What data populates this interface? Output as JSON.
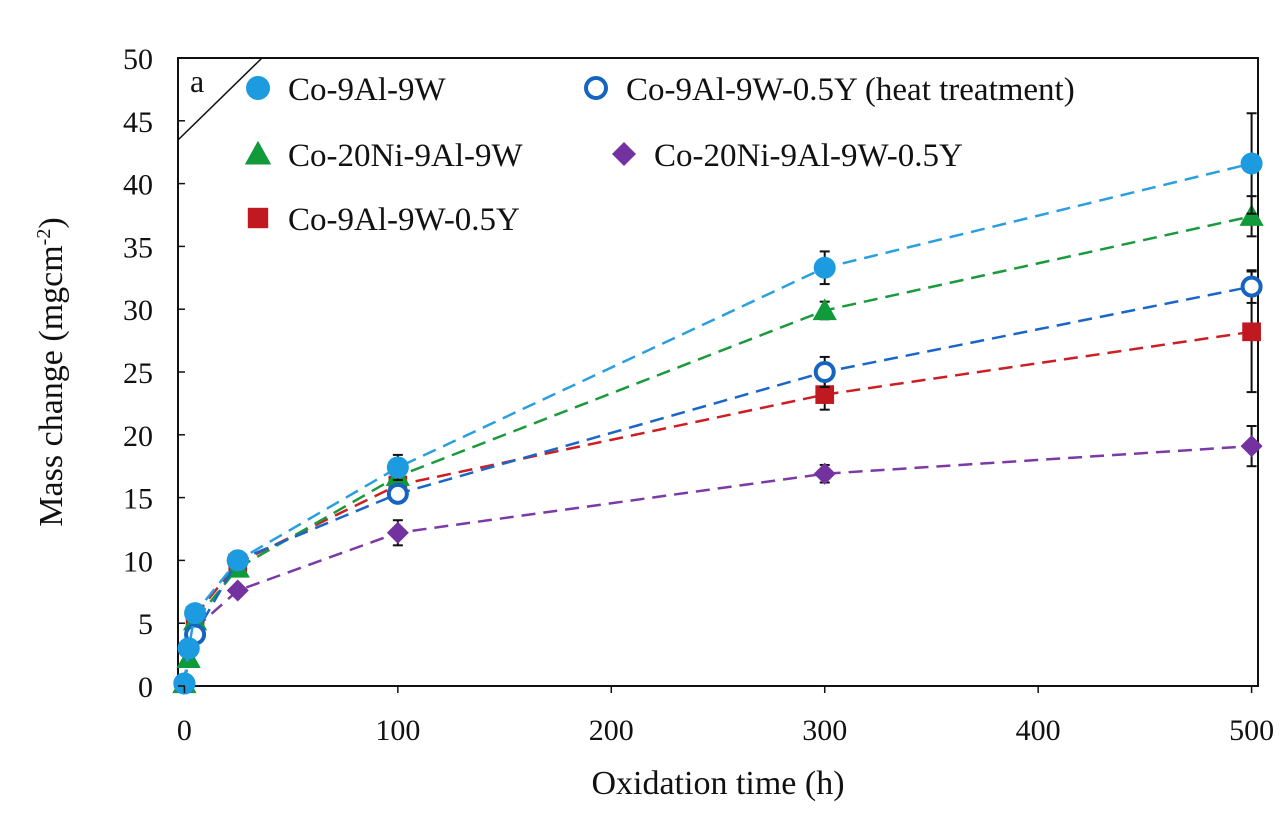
{
  "chart_data": {
    "type": "line",
    "panel_label": "a",
    "xlabel": "Oxidation time (h)",
    "ylabel": "Mass change (mgcm",
    "ylabel_sup": "-2",
    "ylabel_close": ")",
    "xlim": [
      -3,
      503
    ],
    "ylim": [
      0,
      50
    ],
    "xticks": [
      0,
      100,
      200,
      300,
      400,
      500
    ],
    "yticks": [
      0,
      5,
      10,
      15,
      20,
      25,
      30,
      35,
      40,
      45,
      50
    ],
    "grid": false,
    "legend_position": "top-left inside plot, 3 rows x 2 columns",
    "series": [
      {
        "name": "Co-9Al-9W",
        "marker": "circle",
        "color": "#1c9be0",
        "line_color": "#2a9fe0",
        "x": [
          0,
          2,
          5,
          25,
          100,
          300,
          500
        ],
        "y": [
          0.2,
          3.0,
          5.8,
          10.0,
          17.4,
          33.3,
          41.6
        ],
        "err": [
          0,
          0,
          0.5,
          0,
          1.0,
          1.3,
          4.0
        ]
      },
      {
        "name": "Co-9Al-9W-0.5Y (heat treatment)",
        "marker": "open-circle",
        "color": "#1565c0",
        "line_color": "#1a66c8",
        "x": [
          0,
          2,
          5,
          25,
          100,
          300,
          500
        ],
        "y": [
          0.2,
          3.0,
          4.1,
          10.0,
          15.3,
          25.0,
          31.8
        ],
        "err": [
          0,
          0,
          0.3,
          0,
          0.6,
          1.2,
          1.3
        ]
      },
      {
        "name": "Co-20Ni-9Al-9W",
        "marker": "triangle",
        "color": "#109a3a",
        "line_color": "#1a9a3c",
        "x": [
          0,
          2,
          5,
          25,
          100,
          300,
          500
        ],
        "y": [
          0.2,
          2.2,
          5.2,
          9.4,
          16.7,
          29.9,
          37.4
        ],
        "err": [
          0,
          0,
          0.4,
          0,
          0.6,
          0.7,
          1.6
        ]
      },
      {
        "name": "Co-20Ni-9Al-9W-0.5Y",
        "marker": "diamond",
        "color": "#7431a0",
        "line_color": "#7b3aa6",
        "x": [
          5,
          25,
          100,
          300,
          500
        ],
        "y": [
          4.6,
          7.6,
          12.2,
          16.9,
          19.1
        ],
        "err": [
          0.3,
          0.4,
          1.0,
          0.7,
          1.6
        ]
      },
      {
        "name": "Co-9Al-9W-0.5Y",
        "marker": "square",
        "color": "#c0191f",
        "line_color": "#cc1f24",
        "x": [
          5,
          25,
          100,
          300,
          500
        ],
        "y": [
          5.6,
          9.8,
          16.0,
          23.2,
          28.2
        ],
        "err": [
          0.4,
          0.4,
          0.5,
          1.2,
          4.8
        ]
      }
    ]
  }
}
